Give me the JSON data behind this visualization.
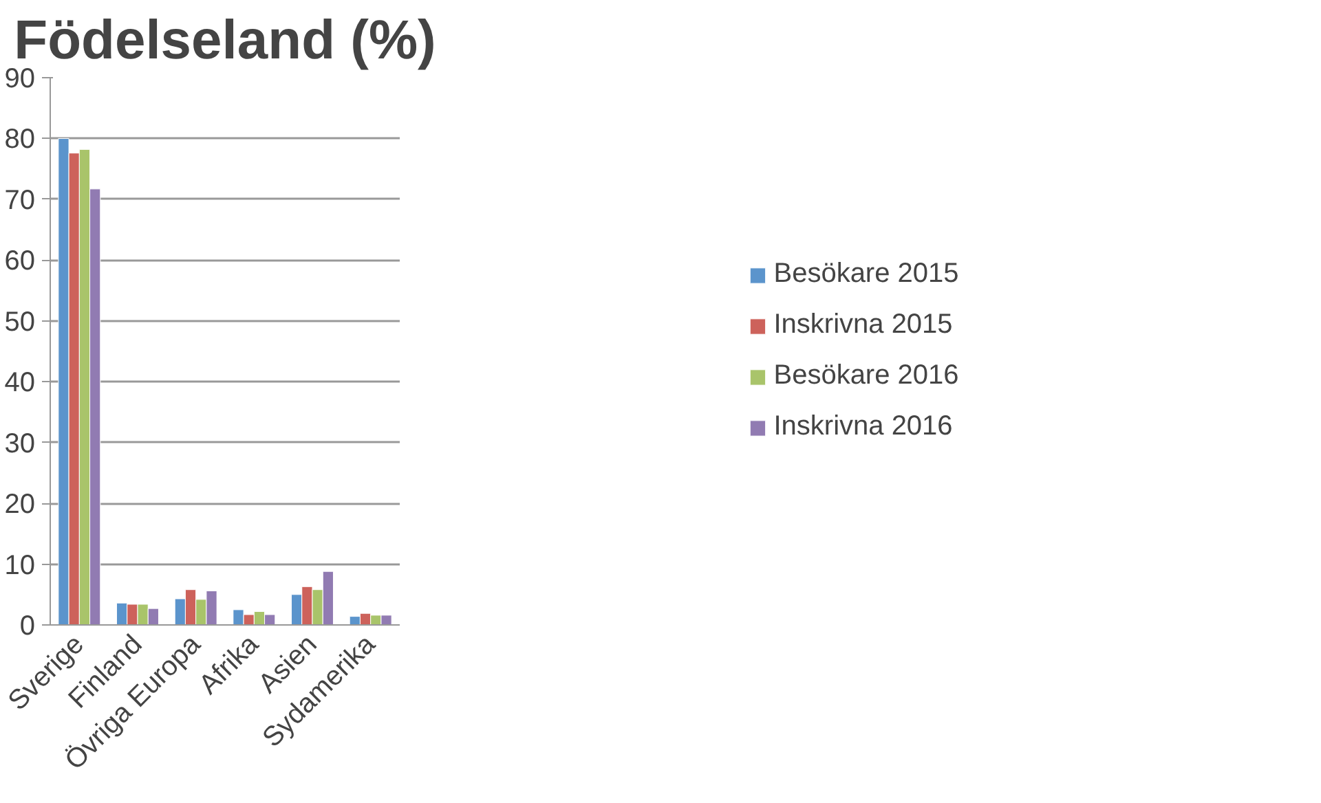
{
  "chart_data": {
    "type": "bar",
    "title": "Födelseland (%)",
    "categories": [
      "Sverige",
      "Finland",
      "Övriga Europa",
      "Afrika",
      "Asien",
      "Sydamerika"
    ],
    "series": [
      {
        "name": "Besökare 2015",
        "color": "#5b94cc",
        "values": [
          80.0,
          3.6,
          4.3,
          2.5,
          5.0,
          1.4
        ]
      },
      {
        "name": "Inskrivna 2015",
        "color": "#cd625b",
        "values": [
          77.6,
          3.4,
          5.8,
          1.7,
          6.3,
          1.9
        ]
      },
      {
        "name": "Besökare 2016",
        "color": "#a9c46a",
        "values": [
          78.2,
          3.4,
          4.2,
          2.2,
          5.8,
          1.6
        ]
      },
      {
        "name": "Inskrivna 2016",
        "color": "#917bb2",
        "values": [
          71.7,
          2.7,
          5.6,
          1.7,
          8.8,
          1.6
        ]
      }
    ],
    "ylim": [
      0,
      90
    ],
    "yticks": [
      0,
      10,
      20,
      30,
      40,
      50,
      60,
      70,
      80,
      90
    ],
    "grid": "y",
    "legend": "right"
  }
}
